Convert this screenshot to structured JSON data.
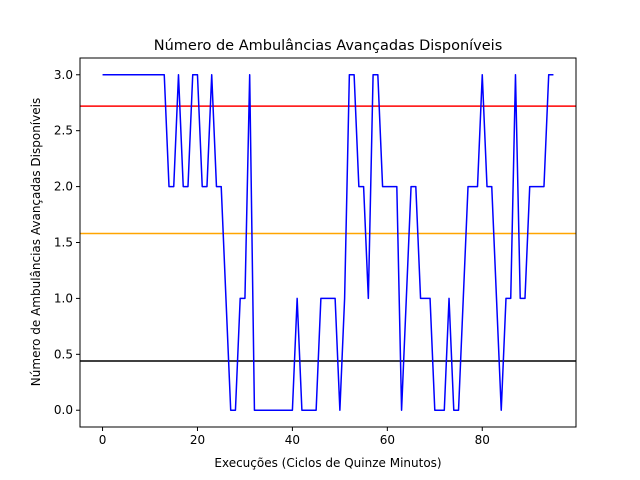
{
  "chart_data": {
    "type": "line",
    "title": "Número de Ambulâncias Avançadas Disponíveis",
    "xlabel": "Execuções (Ciclos de Quinze Minutos)",
    "ylabel": "Número de Ambulâncias Avançadas Disponíveis",
    "xlim": [
      -4.75,
      99.75
    ],
    "ylim": [
      -0.15,
      3.15
    ],
    "x_ticks": [
      0,
      20,
      40,
      60,
      80
    ],
    "x_tick_labels": [
      "0",
      "20",
      "40",
      "60",
      "80"
    ],
    "y_ticks": [
      0.0,
      0.5,
      1.0,
      1.5,
      2.0,
      2.5,
      3.0
    ],
    "y_tick_labels": [
      "0.0",
      "0.5",
      "1.0",
      "1.5",
      "2.0",
      "2.5",
      "3.0"
    ],
    "grid": false,
    "series": [
      {
        "color": "#0000ff",
        "values": [
          3,
          3,
          3,
          3,
          3,
          3,
          3,
          3,
          3,
          3,
          3,
          3,
          3,
          3,
          2,
          2,
          3,
          2,
          2,
          3,
          3,
          2,
          2,
          3,
          2,
          2,
          1,
          0,
          0,
          1,
          1,
          3,
          0,
          0,
          0,
          0,
          0,
          0,
          0,
          0,
          0,
          1,
          0,
          0,
          0,
          0,
          1,
          1,
          1,
          1,
          0,
          1,
          3,
          3,
          2,
          2,
          1,
          3,
          3,
          2,
          2,
          2,
          2,
          0,
          1,
          2,
          2,
          1,
          1,
          1,
          0,
          0,
          0,
          1,
          0,
          0,
          1,
          2,
          2,
          2,
          3,
          2,
          2,
          1,
          0,
          1,
          1,
          3,
          1,
          1,
          2,
          2,
          2,
          2,
          3,
          3
        ]
      }
    ],
    "hlines": [
      {
        "y": 2.72,
        "color": "#ff0000"
      },
      {
        "y": 1.58,
        "color": "#ffa500"
      },
      {
        "y": 0.44,
        "color": "#000000"
      }
    ]
  }
}
